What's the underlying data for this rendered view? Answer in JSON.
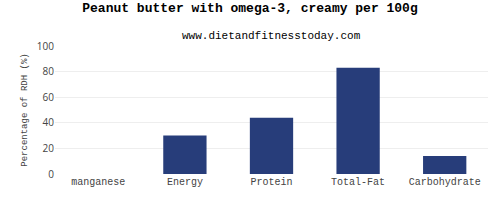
{
  "chart_data": {
    "type": "bar",
    "title": "Peanut butter with omega-3, creamy per 100g",
    "subtitle": "www.dietandfitnesstoday.com",
    "categories": [
      "manganese",
      "Energy",
      "Protein",
      "Total-Fat",
      "Carbohydrate"
    ],
    "values": [
      0,
      30,
      44,
      83,
      14
    ],
    "color": "#273d7a",
    "ylabel": "Percentage of RDH (%)",
    "ylim": [
      0,
      100
    ],
    "yticks": [
      0,
      20,
      40,
      60,
      80,
      100
    ],
    "grid": true
  }
}
